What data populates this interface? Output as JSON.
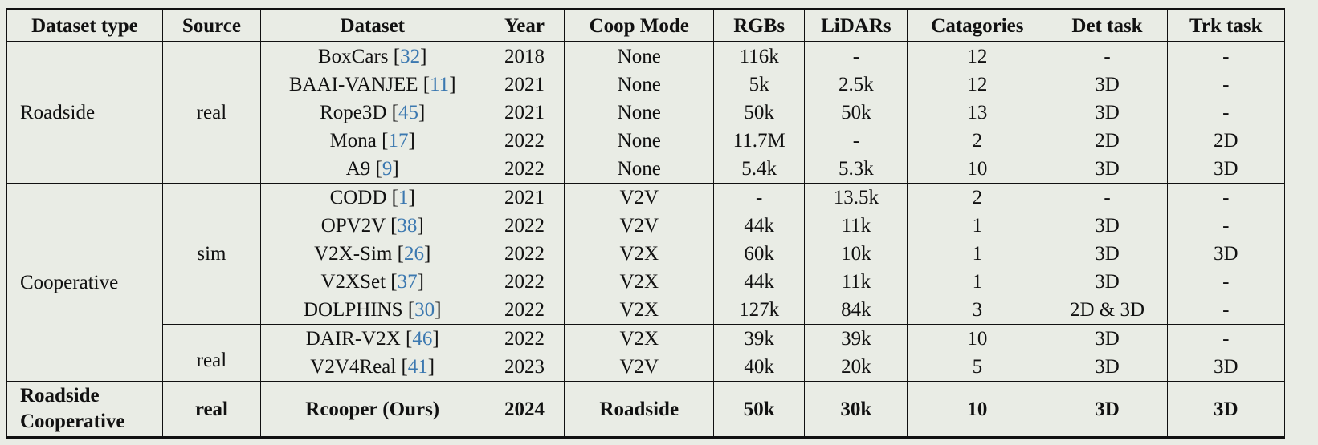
{
  "headers": [
    "Dataset type",
    "Source",
    "Dataset",
    "Year",
    "Coop Mode",
    "RGBs",
    "LiDARs",
    "Catagories",
    "Det task",
    "Trk task"
  ],
  "groups": {
    "roadside": {
      "type": "Roadside",
      "source": "real"
    },
    "cooperative": {
      "type": "Cooperative",
      "source_sim": "sim",
      "source_real": "real"
    },
    "ours": {
      "type_line1": "Roadside",
      "type_line2": "Cooperative",
      "source": "real"
    }
  },
  "rows": [
    {
      "name": "BoxCars",
      "cite": "32",
      "year": "2018",
      "coop": "None",
      "rgbs": "116k",
      "lidars": "-",
      "cats": "12",
      "det": "-",
      "trk": "-"
    },
    {
      "name": "BAAI-VANJEE",
      "cite": "11",
      "year": "2021",
      "coop": "None",
      "rgbs": "5k",
      "lidars": "2.5k",
      "cats": "12",
      "det": "3D",
      "trk": "-"
    },
    {
      "name": "Rope3D",
      "cite": "45",
      "year": "2021",
      "coop": "None",
      "rgbs": "50k",
      "lidars": "50k",
      "cats": "13",
      "det": "3D",
      "trk": "-"
    },
    {
      "name": "Mona",
      "cite": "17",
      "year": "2022",
      "coop": "None",
      "rgbs": "11.7M",
      "lidars": "-",
      "cats": "2",
      "det": "2D",
      "trk": "2D"
    },
    {
      "name": "A9",
      "cite": "9",
      "year": "2022",
      "coop": "None",
      "rgbs": "5.4k",
      "lidars": "5.3k",
      "cats": "10",
      "det": "3D",
      "trk": "3D"
    },
    {
      "name": "CODD",
      "cite": "1",
      "year": "2021",
      "coop": "V2V",
      "rgbs": "-",
      "lidars": "13.5k",
      "cats": "2",
      "det": "-",
      "trk": "-"
    },
    {
      "name": "OPV2V",
      "cite": "38",
      "year": "2022",
      "coop": "V2V",
      "rgbs": "44k",
      "lidars": "11k",
      "cats": "1",
      "det": "3D",
      "trk": "-"
    },
    {
      "name": "V2X-Sim",
      "cite": "26",
      "year": "2022",
      "coop": "V2X",
      "rgbs": "60k",
      "lidars": "10k",
      "cats": "1",
      "det": "3D",
      "trk": "3D"
    },
    {
      "name": "V2XSet",
      "cite": "37",
      "year": "2022",
      "coop": "V2X",
      "rgbs": "44k",
      "lidars": "11k",
      "cats": "1",
      "det": "3D",
      "trk": "-"
    },
    {
      "name": "DOLPHINS",
      "cite": "30",
      "year": "2022",
      "coop": "V2X",
      "rgbs": "127k",
      "lidars": "84k",
      "cats": "3",
      "det": "2D & 3D",
      "trk": "-"
    },
    {
      "name": "DAIR-V2X",
      "cite": "46",
      "year": "2022",
      "coop": "V2X",
      "rgbs": "39k",
      "lidars": "39k",
      "cats": "10",
      "det": "3D",
      "trk": "-"
    },
    {
      "name": "V2V4Real",
      "cite": "41",
      "year": "2023",
      "coop": "V2V",
      "rgbs": "40k",
      "lidars": "20k",
      "cats": "5",
      "det": "3D",
      "trk": "3D"
    }
  ],
  "ours": {
    "name": "Rcooper (Ours)",
    "year": "2024",
    "coop": "Roadside",
    "rgbs": "50k",
    "lidars": "30k",
    "cats": "10",
    "det": "3D",
    "trk": "3D"
  }
}
